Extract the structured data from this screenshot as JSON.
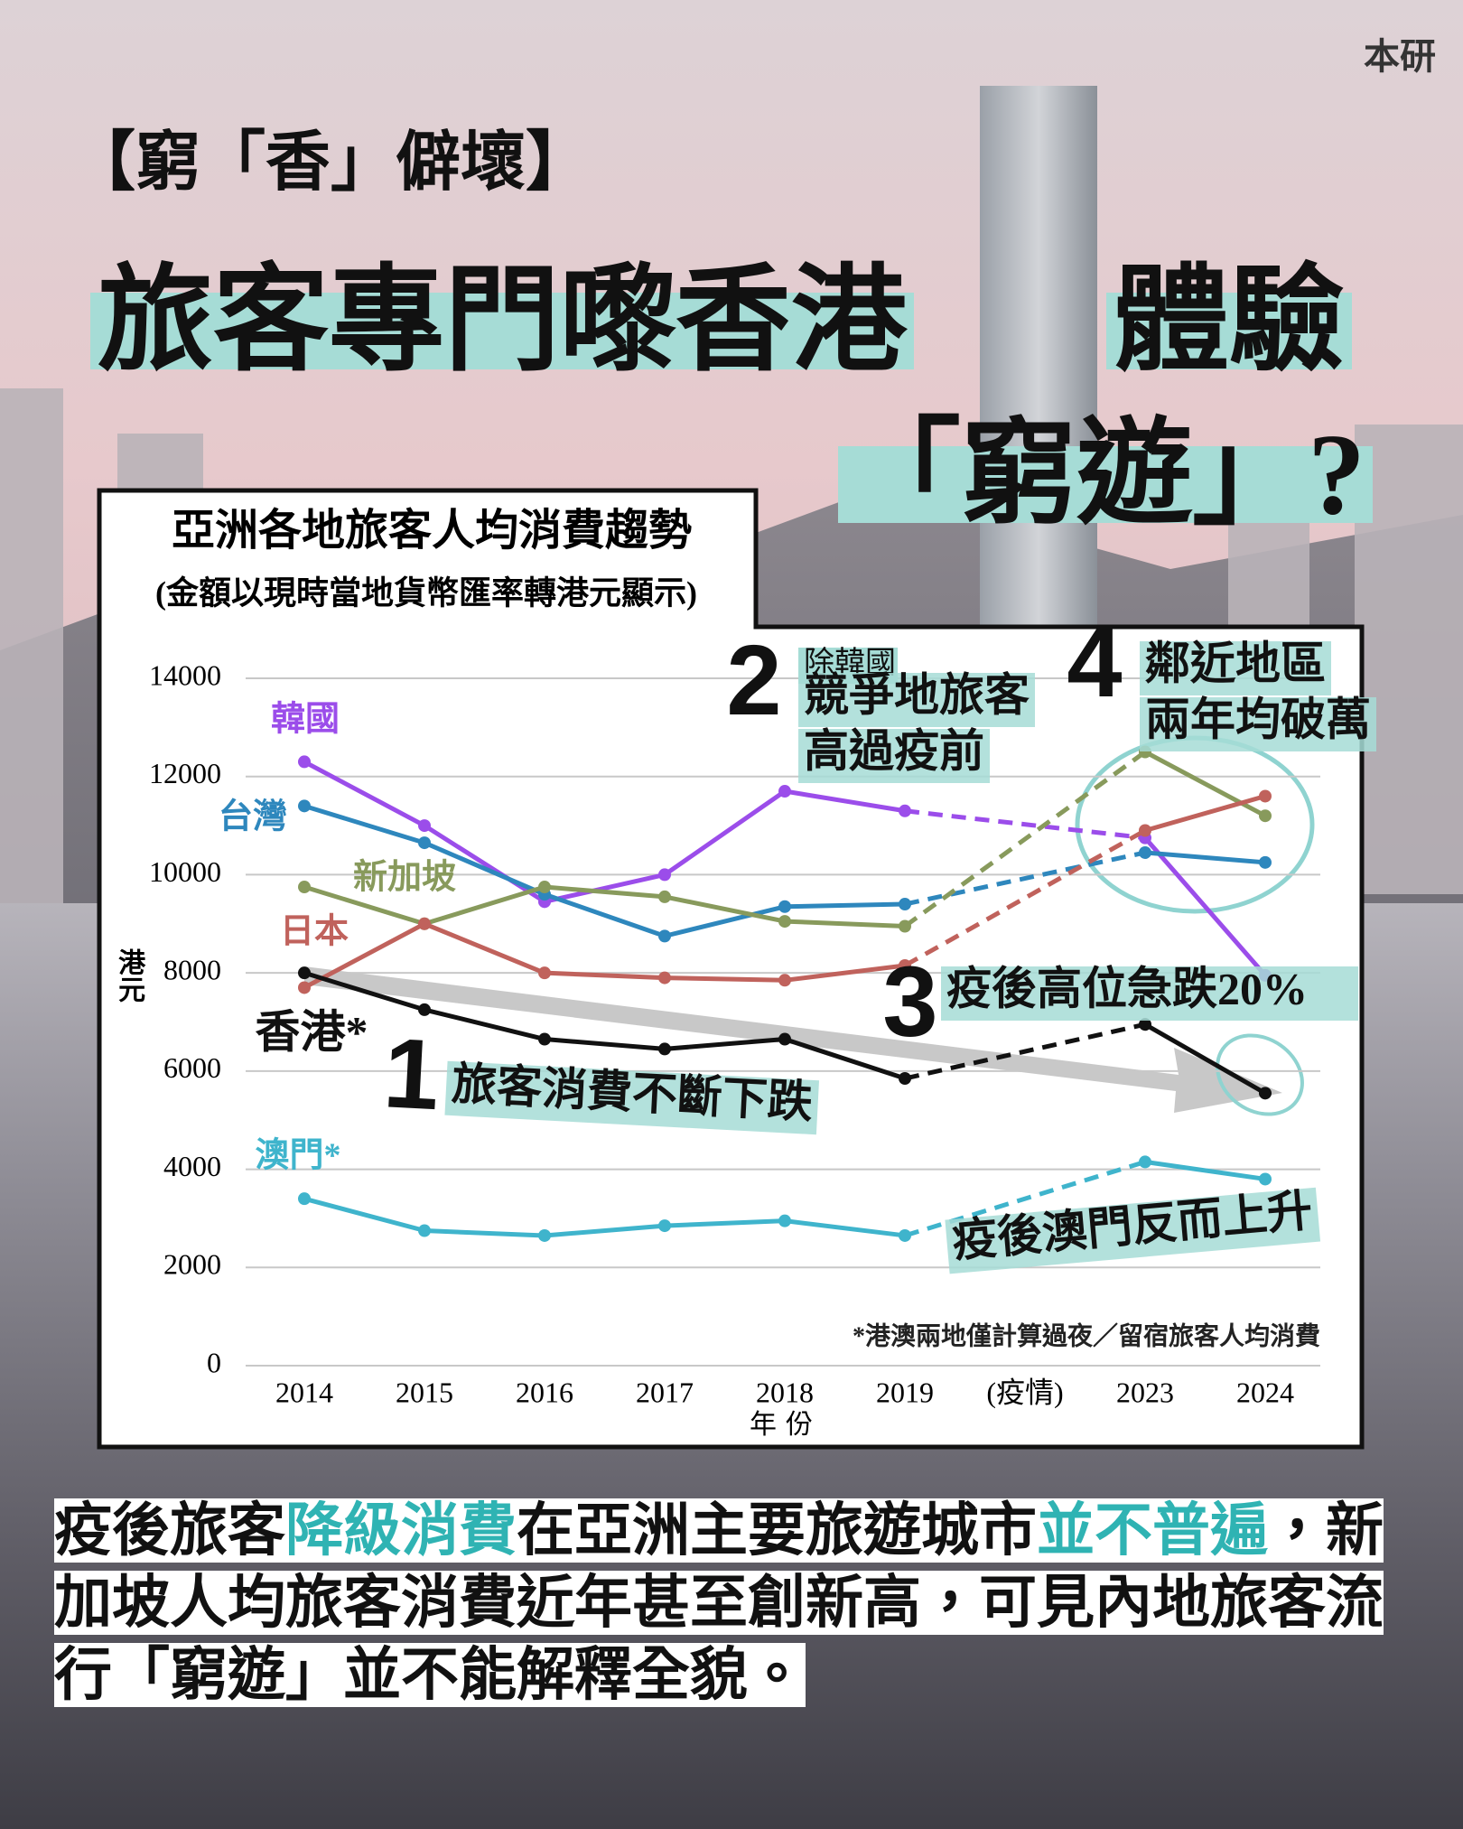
{
  "header": {
    "brand": "本研",
    "tag": "【窮「香」僻壞】",
    "headline": [
      "旅客專門嚟香港",
      "體驗",
      "「窮遊」?"
    ]
  },
  "chart_data": {
    "type": "line",
    "title": "亞洲各地旅客人均消費趨勢",
    "subtitle": "(金額以現時當地貨幣匯率轉港元顯示)",
    "y_label": "港元",
    "x_label": "年份",
    "categories": [
      "2014",
      "2015",
      "2016",
      "2017",
      "2018",
      "2019",
      "(疫情)",
      "2023",
      "2024"
    ],
    "series": [
      {
        "name": "韓國",
        "color": "#9b4dea",
        "values": [
          12300,
          11000,
          9450,
          10000,
          11700,
          11300,
          null,
          10750,
          7950
        ]
      },
      {
        "name": "台灣",
        "color": "#2e87bd",
        "values": [
          11400,
          10650,
          9600,
          8750,
          9350,
          9400,
          null,
          10450,
          10250
        ]
      },
      {
        "name": "新加坡",
        "color": "#889a5c",
        "values": [
          9750,
          9000,
          9750,
          9550,
          9050,
          8950,
          null,
          12500,
          11200
        ]
      },
      {
        "name": "日本",
        "color": "#c0625c",
        "values": [
          7700,
          9000,
          8000,
          7900,
          7850,
          8150,
          null,
          10900,
          11600
        ]
      },
      {
        "name": "香港*",
        "color": "#111111",
        "values": [
          8000,
          7250,
          6650,
          6450,
          6650,
          5850,
          null,
          6950,
          5550
        ]
      },
      {
        "name": "澳門*",
        "color": "#3fb4cc",
        "values": [
          3400,
          2750,
          2650,
          2850,
          2950,
          2650,
          null,
          4150,
          3800
        ]
      }
    ],
    "gap_line": "dashed",
    "ylim": [
      0,
      14000
    ],
    "yticks": [
      0,
      2000,
      4000,
      6000,
      8000,
      10000,
      12000,
      14000
    ],
    "grid": true,
    "annotations": [
      {
        "number": "1",
        "text": [
          "旅客消費不斷下跌"
        ]
      },
      {
        "number": "2",
        "note": "除韓國",
        "text": [
          "競爭地旅客",
          "高過疫前"
        ]
      },
      {
        "number": "3",
        "text": [
          "疫後高位急跌20%"
        ]
      },
      {
        "number": "4",
        "text": [
          "鄰近地區",
          "兩年均破萬"
        ]
      },
      {
        "text": [
          "疫後澳門反而上升"
        ]
      }
    ],
    "footnote": "*港澳兩地僅計算過夜／留宿旅客人均消費"
  },
  "body": [
    {
      "text": "疫後旅客",
      "color": "#111111"
    },
    {
      "text": "降級消費",
      "color": "#2fb3b3"
    },
    {
      "text": "在亞洲主要旅遊城市",
      "color": "#111111"
    },
    {
      "text": "並不普遍",
      "color": "#2fb3b3"
    },
    {
      "text": "，新加坡人均旅客消費近年甚至創新高，可見內地旅客流行「窮遊」並不能解釋全貌。",
      "color": "#111111"
    }
  ]
}
